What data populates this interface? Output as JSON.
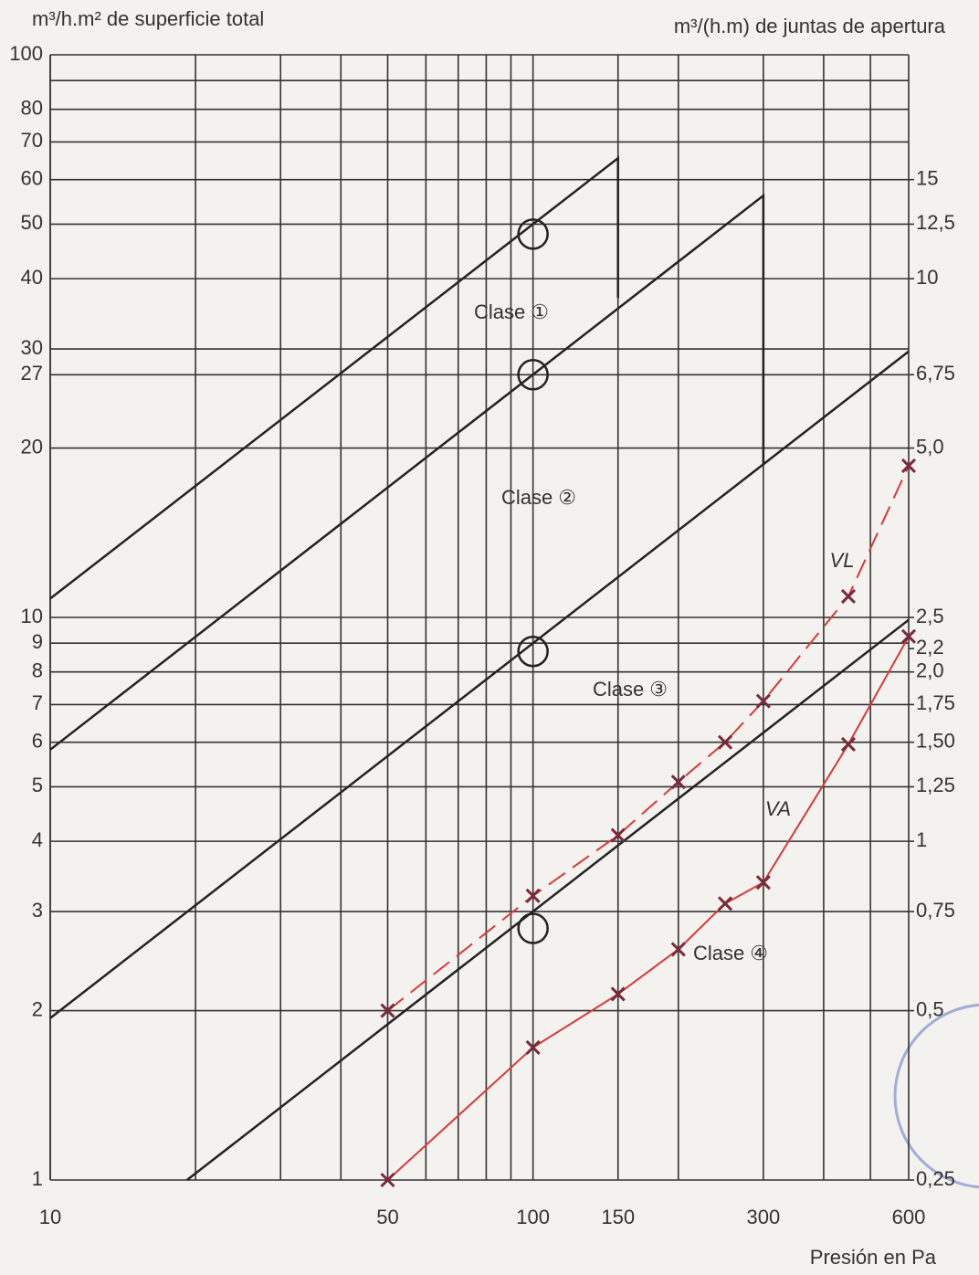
{
  "chart_data": {
    "type": "line",
    "ylabel": "m³/h.m² de superficie total",
    "y2label": "m³/(h.m) de juntas de apertura",
    "xlabel": "Presión en Pa",
    "xlog": true,
    "ylog": true,
    "grid": true,
    "xlim": [
      10,
      600
    ],
    "xticks": [
      10,
      50,
      100,
      150,
      300,
      600
    ],
    "xminor": [
      20,
      30,
      40,
      60,
      70,
      80,
      90,
      200,
      400,
      500
    ],
    "ylim": [
      1,
      100
    ],
    "yticks": [
      1,
      2,
      3,
      4,
      5,
      6,
      7,
      8,
      9,
      10,
      20,
      27,
      30,
      40,
      50,
      60,
      70,
      80,
      100
    ],
    "yminor": [
      90
    ],
    "y2lim": [
      0.25,
      25
    ],
    "y2ticks": [
      15,
      {
        "value": 12.5,
        "label": "12,5"
      },
      10,
      {
        "value": 6.75,
        "label": "6,75"
      },
      {
        "value": 5,
        "label": "5,0"
      },
      {
        "value": 2.5,
        "label": "2,5"
      },
      {
        "value": 2.2,
        "label": "2,2"
      },
      {
        "value": 2,
        "label": "2,0"
      },
      {
        "value": 1.75,
        "label": "1,75"
      },
      {
        "value": 1.5,
        "label": "1,50"
      },
      {
        "value": 1.25,
        "label": "1,25"
      },
      1,
      {
        "value": 0.75,
        "label": "0,75"
      },
      {
        "value": 0.5,
        "label": "0,5"
      },
      {
        "value": 0.25,
        "label": "0,25"
      }
    ],
    "limits": [
      {
        "color": "#222222",
        "x": [
          10,
          150,
          150
        ],
        "values": [
          10.8,
          65.5,
          37
        ]
      },
      {
        "color": "#222222",
        "x": [
          10,
          300,
          300
        ],
        "values": [
          5.82,
          56.2,
          18.7
        ]
      },
      {
        "color": "#222222",
        "x": [
          10,
          600
        ],
        "values": [
          1.94,
          29.7
        ]
      },
      {
        "color": "#222222",
        "x": [
          19.2,
          600
        ],
        "values": [
          1,
          9.9
        ]
      }
    ],
    "series": [
      {
        "name": "VL",
        "color": "#d9383a",
        "dashed": true,
        "x": [
          50,
          100,
          150,
          200,
          250,
          300,
          450,
          600
        ],
        "values": [
          2.0,
          3.2,
          4.1,
          5.1,
          6.0,
          7.1,
          10.9,
          18.6
        ]
      },
      {
        "name": "VA",
        "color": "#d9383a",
        "dashed": false,
        "x": [
          50,
          100,
          150,
          200,
          250,
          300,
          450,
          600
        ],
        "values": [
          1.0,
          1.72,
          2.14,
          2.57,
          3.1,
          3.38,
          5.95,
          9.25
        ]
      }
    ],
    "circles": {
      "x": [
        100,
        100,
        100,
        100
      ],
      "values": [
        48,
        27,
        8.7,
        2.8
      ]
    },
    "annotations": [
      "Clase ①",
      "Clase ②",
      "Clase ③",
      "Clase ④"
    ]
  }
}
